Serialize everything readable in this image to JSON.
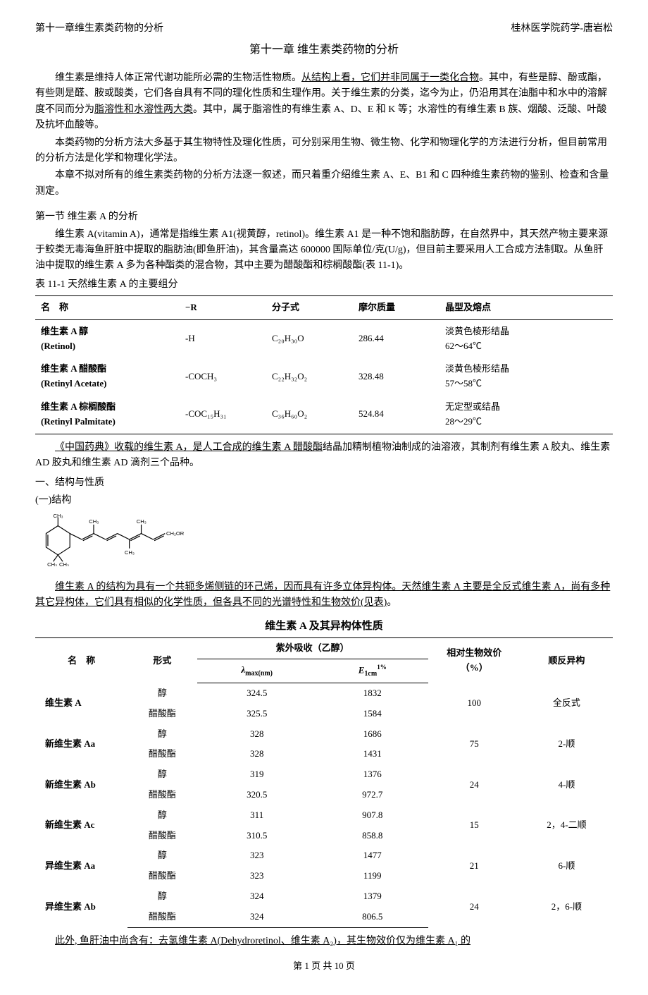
{
  "header": {
    "left": "第十一章维生素类药物的分析",
    "right": "桂林医学院药学-唐岩松"
  },
  "title": "第十一章 维生素类药物的分析",
  "paragraphs": {
    "p1a": "维生素是维持人体正常代谢功能所必需的生物活性物质。",
    "p1b": "从结构上看，它们并非同属于一类化合物",
    "p1c": "。其中，有些是醇、酚或酯，有些则是醛、胺或酸类，它们各自具有不同的理化性质和生理作用。关于维生素的分类，迄今为止，仍沿用其在油脂中和水中的溶解度不同而分为",
    "p1d": "脂溶性和水溶性两大类",
    "p1e": "。其中，属于脂溶性的有维生素 A、D、E 和 K 等；水溶性的有维生素 B 族、烟酸、泛酸、叶酸及抗坏血酸等。",
    "p2": "本类药物的分析方法大多基于其生物特性及理化性质，可分别采用生物、微生物、化学和物理化学的方法进行分析，但目前常用的分析方法是化学和物理化学法。",
    "p3": "本章不拟对所有的维生素类药物的分析方法逐一叙述，而只着重介绍维生素 A、E、B1 和 C 四种维生素药物的鉴别、检查和含量测定。",
    "sec1": "第一节 维生素 A 的分析",
    "p4": "维生素 A(vitamin A)，通常是指维生素 A1(视黄醇，retinol)。维生素 A1 是一种不饱和脂肪醇，在自然界中，其天然产物主要来源于鲛类无毒海鱼肝脏中提取的脂肪油(即鱼肝油)，其含量高达 600000 国际单位/克(U/g)，但目前主要采用人工合成方法制取。从鱼肝油中提取的维生素 A 多为各种酯类的混合物，其中主要为醋酸酯和棕榈酸酯(表 11-1)。",
    "tbl1cap": "表 11-1 天然维生素 A 的主要组分",
    "p5a": "《中国药典》收载的维生素 A，是人工合成的维生素 A 醋酸酯",
    "p5b": "结晶加精制植物油制成的油溶液，其制剂有维生素 A 胶丸、维生素 AD 胶丸和维生素 AD 滴剂三个品种。",
    "h1": "一、结构与性质",
    "h1a": "(一)结构",
    "p6a": "维生素 A 的结构为具有一个共轭多烯侧链的环己烯，因而具有许多立体异构体。天然维生素 A 主要是全反式维生素 A，尚有多种其它异构体，它们具有相似的化学性质，但各具不同的光谱特性和生物效价(见表)",
    "p6b": "。",
    "tbl2title": "维生素 A 及其异构体性质",
    "p7a": "此外, 鱼肝油中尚含有：去氢维生素 A(Dehydroretinol、维生素 A₂)，其生物效价仅为维生素 A₁ 的"
  },
  "table1": {
    "headers": [
      "名　称",
      "−R",
      "分子式",
      "摩尔质量",
      "晶型及熔点"
    ],
    "rows": [
      {
        "cn": "维生素 A 醇",
        "en": "(Retinol)",
        "r": "-H",
        "formula": "C₂₀H₃₀O",
        "mass": "286.44",
        "desc": "淡黄色棱形结晶\n62～64℃"
      },
      {
        "cn": "维生素 A 醋酸酯",
        "en": "(Retinyl Acetate)",
        "r": "-COCH₃",
        "formula": "C₂₂H₃₂O₂",
        "mass": "328.48",
        "desc": "淡黄色棱形结晶\n57～58℃"
      },
      {
        "cn": "维生素 A 棕榈酸酯",
        "en": "(Retinyl Palmitate)",
        "r": "-COC₁₅H₃₁",
        "formula": "C₃₆H₆₀O₂",
        "mass": "524.84",
        "desc": "无定型或结晶\n28～29℃"
      }
    ]
  },
  "table2": {
    "head": {
      "name": "名　称",
      "form": "形式",
      "uv": "紫外吸收（乙醇）",
      "lambda": "λmax(nm)",
      "e": "E¹%₁cm",
      "bio": "相对生物效价\n（%）",
      "cis": "顺反异构"
    },
    "groups": [
      {
        "name": "维生素 A",
        "rows": [
          {
            "form": "醇",
            "l": "324.5",
            "e": "1832"
          },
          {
            "form": "醋酸酯",
            "l": "325.5",
            "e": "1584"
          }
        ],
        "bio": "100",
        "cis": "全反式"
      },
      {
        "name": "新维生素 Aa",
        "rows": [
          {
            "form": "醇",
            "l": "328",
            "e": "1686"
          },
          {
            "form": "醋酸酯",
            "l": "328",
            "e": "1431"
          }
        ],
        "bio": "75",
        "cis": "2-顺"
      },
      {
        "name": "新维生素 Ab",
        "rows": [
          {
            "form": "醇",
            "l": "319",
            "e": "1376"
          },
          {
            "form": "醋酸酯",
            "l": "320.5",
            "e": "972.7"
          }
        ],
        "bio": "24",
        "cis": "4-顺"
      },
      {
        "name": "新维生素 Ac",
        "rows": [
          {
            "form": "醇",
            "l": "311",
            "e": "907.8"
          },
          {
            "form": "醋酸酯",
            "l": "310.5",
            "e": "858.8"
          }
        ],
        "bio": "15",
        "cis": "2，4-二顺"
      },
      {
        "name": "异维生素 Aa",
        "rows": [
          {
            "form": "醇",
            "l": "323",
            "e": "1477"
          },
          {
            "form": "醋酸酯",
            "l": "323",
            "e": "1199"
          }
        ],
        "bio": "21",
        "cis": "6-顺"
      },
      {
        "name": "异维生素 Ab",
        "rows": [
          {
            "form": "醇",
            "l": "324",
            "e": "1379"
          },
          {
            "form": "醋酸酯",
            "l": "324",
            "e": "806.5"
          }
        ],
        "bio": "24",
        "cis": "2，6-顺"
      }
    ]
  },
  "footer": "第 1 页 共 10 页",
  "structure_labels": {
    "ch3": "CH₃",
    "ch2or": "CH₂OR"
  }
}
